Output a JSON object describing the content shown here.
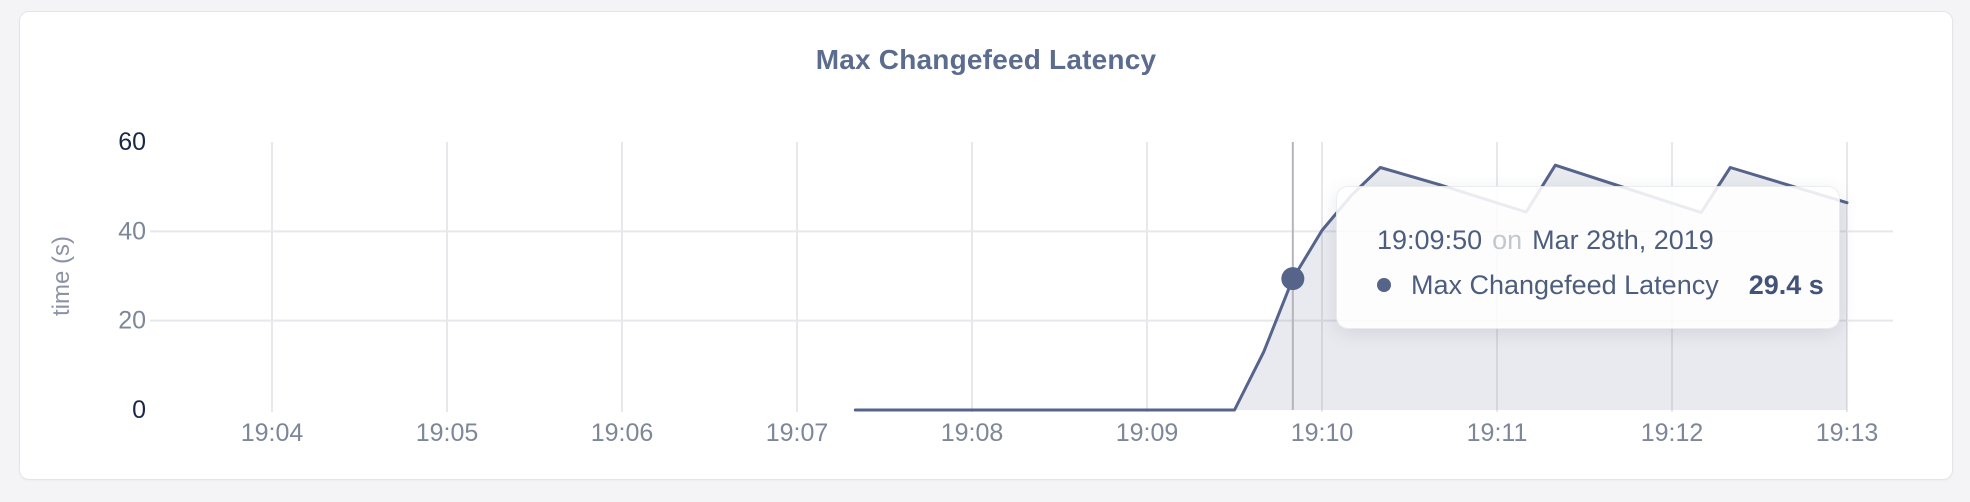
{
  "chart_data": {
    "type": "area",
    "title": "Max Changefeed Latency",
    "xlabel": "",
    "ylabel": "time (s)",
    "ylim": [
      0,
      60
    ],
    "yticks": [
      0,
      20,
      40,
      60
    ],
    "ytick_emphasized": [
      0,
      60
    ],
    "xticks": [
      "19:04",
      "19:05",
      "19:06",
      "19:07",
      "19:08",
      "19:09",
      "19:10",
      "19:11",
      "19:12",
      "19:13"
    ],
    "grid": "on",
    "legend": "none",
    "series": [
      {
        "name": "Max Changefeed Latency",
        "points": [
          [
            "19:07:20",
            0
          ],
          [
            "19:09:30",
            0
          ],
          [
            "19:09:40",
            13
          ],
          [
            "19:09:50",
            29.4
          ],
          [
            "19:10:00",
            40.2
          ],
          [
            "19:10:10",
            48
          ],
          [
            "19:10:20",
            54.3
          ],
          [
            "19:10:40",
            50.5
          ],
          [
            "19:11:10",
            44.3
          ],
          [
            "19:11:20",
            54.8
          ],
          [
            "19:12:10",
            44.2
          ],
          [
            "19:12:20",
            54.3
          ],
          [
            "19:13:00",
            46.4
          ]
        ]
      }
    ],
    "hover_point": {
      "time": "19:09:50",
      "value": 29.4
    }
  },
  "tooltip": {
    "time": "19:09:50",
    "conjunction": "on",
    "date": "Mar 28th, 2019",
    "series_label": "Max Changefeed Latency",
    "value": "29.4 s"
  },
  "colors": {
    "accent_line": "#56648a",
    "area_fill": "rgba(91,107,142,0.14)",
    "grid": "#e7e8eb",
    "tick_label": "#7e8798",
    "tick_label_emphasis": "#1a2847",
    "axis_title": "#8b93a4",
    "chart_title": "#5b6c8e",
    "crosshair": "#b3b6bd",
    "tooltip_text": "#4d5d7e",
    "tooltip_muted": "#c3c7ce"
  }
}
